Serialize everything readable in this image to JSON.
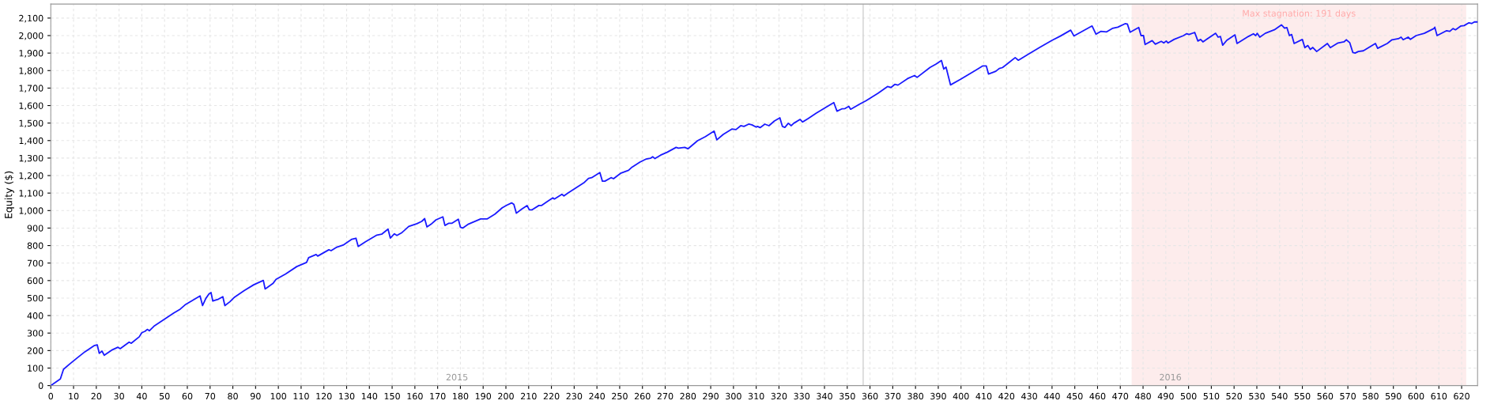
{
  "chart_data": {
    "type": "line",
    "ylabel": "Equity ($)",
    "xlim": [
      0,
      627
    ],
    "ylim": [
      0,
      2180
    ],
    "xticks": [
      0,
      10,
      20,
      30,
      40,
      50,
      60,
      70,
      80,
      90,
      100,
      110,
      120,
      130,
      140,
      150,
      160,
      170,
      180,
      190,
      200,
      210,
      220,
      230,
      240,
      250,
      260,
      270,
      280,
      290,
      300,
      310,
      320,
      330,
      340,
      350,
      360,
      370,
      380,
      390,
      400,
      410,
      420,
      430,
      440,
      450,
      460,
      470,
      480,
      490,
      500,
      510,
      520,
      530,
      540,
      550,
      560,
      570,
      580,
      590,
      600,
      610,
      620
    ],
    "yticks": [
      0,
      100,
      200,
      300,
      400,
      500,
      600,
      700,
      800,
      900,
      {
        "value": 1000,
        "label": "1,000"
      },
      {
        "value": 1100,
        "label": "1,100"
      },
      {
        "value": 1200,
        "label": "1,200"
      },
      {
        "value": 1300,
        "label": "1,300"
      },
      {
        "value": 1400,
        "label": "1,400"
      },
      {
        "value": 1500,
        "label": "1,500"
      },
      {
        "value": 1600,
        "label": "1,600"
      },
      {
        "value": 1700,
        "label": "1,700"
      },
      {
        "value": 1800,
        "label": "1,800"
      },
      {
        "value": 1900,
        "label": "1,900"
      },
      {
        "value": 2000,
        "label": "2,000"
      },
      {
        "value": 2100,
        "label": "2,100"
      }
    ],
    "grid": true,
    "marker": "none",
    "line_style": "solid",
    "series": [
      {
        "color": "#1a1aff",
        "x": [
          0,
          4.2,
          5.6,
          8.4,
          11.5,
          15,
          19,
          20.4,
          21.3,
          22.5,
          23.5,
          26.7,
          29.5,
          30.5,
          34.4,
          35.4,
          38.9,
          40,
          41.4,
          42.4,
          43.3,
          45.6,
          54.1,
          56.9,
          59,
          65.6,
          66.7,
          68.1,
          69.5,
          70.4,
          71.2,
          73.7,
          75.6,
          76.5,
          78.7,
          80.8,
          85,
          89.2,
          93.4,
          94.2,
          97.6,
          99,
          103.2,
          108.1,
          112.4,
          113.3,
          116.6,
          117.3,
          122.2,
          123.2,
          125.7,
          128.5,
          132.3,
          134.1,
          135.1,
          138.3,
          143.3,
          145.4,
          148.2,
          149.2,
          151,
          152.1,
          154.3,
          157.3,
          160.9,
          163,
          164.3,
          165.3,
          167.1,
          169.3,
          172.3,
          173.2,
          174.8,
          176.2,
          179.1,
          180,
          181,
          183.6,
          188.9,
          191.7,
          195.2,
          198.4,
          200.4,
          202.5,
          203.5,
          204.6,
          206.8,
          209.3,
          210.3,
          211.4,
          214.5,
          215.6,
          220.6,
          221.3,
          224.6,
          225.5,
          227.2,
          234.2,
          236.3,
          237.7,
          241.3,
          242.4,
          243.5,
          246.2,
          247.3,
          250.4,
          253.9,
          255.4,
          258.9,
          261.7,
          263.5,
          264.5,
          265.5,
          268,
          270.8,
          274.8,
          275.8,
          278.6,
          280,
          284.2,
          287.7,
          291.5,
          292.7,
          295.5,
          299.3,
          301.1,
          303.2,
          304.6,
          306.7,
          308.1,
          310,
          310.6,
          311.7,
          313.8,
          315.6,
          318,
          320.4,
          321.5,
          322.6,
          324.1,
          325.4,
          326.5,
          329.3,
          330.4,
          332.8,
          336.3,
          340.6,
          344.1,
          345.5,
          347.6,
          349,
          350.7,
          351.5,
          355.4,
          358.2,
          363.5,
          367.7,
          369.2,
          370.9,
          372.3,
          376.5,
          379.6,
          380.7,
          386.4,
          388.9,
          391.4,
          392.4,
          393.4,
          395.4,
          399.8,
          406.8,
          409.6,
          411.1,
          412.1,
          415.3,
          416.8,
          418.2,
          421,
          423.8,
          425.2,
          429.9,
          434.7,
          440,
          443.5,
          448.2,
          449.6,
          457.6,
          459.3,
          461.4,
          464,
          466.5,
          468.9,
          472.1,
          473.1,
          474.3,
          478.1,
          479.1,
          480.2,
          480.9,
          484,
          485.4,
          488,
          489.1,
          490.2,
          491,
          493.6,
          497.8,
          499.2,
          500.2,
          502.7,
          504.1,
          505.3,
          506.3,
          511.9,
          513,
          514,
          515,
          516.8,
          520.4,
          521.3,
          526.3,
          528.5,
          529.5,
          530.2,
          531.3,
          533.7,
          537.7,
          540.8,
          542.2,
          543.2,
          544.3,
          545.3,
          546.4,
          550,
          551.1,
          552.4,
          553.5,
          554.6,
          556.3,
          561,
          562.3,
          565.7,
          568.3,
          569.3,
          570.8,
          572.2,
          573.2,
          574.6,
          576.8,
          582.1,
          583.1,
          587.3,
          589.4,
          592.2,
          593.4,
          594.3,
          596.5,
          597.5,
          600,
          603.6,
          607.8,
          608.2,
          609.2,
          613.4,
          614.8,
          616.2,
          617.3,
          619.7,
          621.1,
          623.2,
          624.4,
          625.6,
          627
        ],
        "values": [
          0,
          38,
          93,
          124,
          157,
          193,
          228,
          233,
          184,
          197,
          173,
          202,
          219,
          211,
          248,
          242,
          279,
          302,
          310,
          321,
          313,
          342,
          415,
          437,
          461,
          512,
          457,
          497,
          524,
          532,
          483,
          494,
          508,
          457,
          479,
          506,
          543,
          576,
          601,
          552,
          583,
          607,
          638,
          680,
          704,
          731,
          749,
          740,
          776,
          771,
          791,
          803,
          836,
          842,
          795,
          822,
          860,
          865,
          894,
          843,
          867,
          858,
          874,
          909,
          925,
          938,
          954,
          907,
          922,
          947,
          964,
          915,
          927,
          927,
          951,
          905,
          900,
          923,
          952,
          952,
          980,
          1016,
          1031,
          1044,
          1035,
          985,
          1007,
          1029,
          1004,
          1004,
          1029,
          1029,
          1073,
          1066,
          1093,
          1084,
          1100,
          1158,
          1184,
          1188,
          1217,
          1168,
          1168,
          1188,
          1182,
          1213,
          1230,
          1248,
          1277,
          1295,
          1299,
          1308,
          1297,
          1317,
          1333,
          1361,
          1357,
          1361,
          1353,
          1399,
          1423,
          1454,
          1404,
          1435,
          1466,
          1463,
          1485,
          1481,
          1494,
          1490,
          1477,
          1481,
          1474,
          1494,
          1485,
          1512,
          1530,
          1481,
          1475,
          1499,
          1485,
          1499,
          1521,
          1506,
          1526,
          1556,
          1590,
          1617,
          1568,
          1581,
          1583,
          1596,
          1579,
          1608,
          1627,
          1670,
          1709,
          1703,
          1721,
          1717,
          1754,
          1772,
          1761,
          1818,
          1836,
          1858,
          1809,
          1820,
          1718,
          1750,
          1805,
          1827,
          1827,
          1780,
          1796,
          1812,
          1817,
          1845,
          1874,
          1859,
          1896,
          1933,
          1973,
          1996,
          2031,
          1998,
          2055,
          2008,
          2024,
          2021,
          2041,
          2048,
          2068,
          2066,
          2019,
          2046,
          2000,
          2000,
          1949,
          1971,
          1951,
          1967,
          1958,
          1969,
          1958,
          1978,
          2000,
          2011,
          2006,
          2018,
          1969,
          1978,
          1964,
          2013,
          1991,
          1995,
          1945,
          1973,
          2004,
          1955,
          1995,
          2010,
          2000,
          2013,
          1991,
          2013,
          2033,
          2061,
          2042,
          2046,
          2000,
          2006,
          1955,
          1978,
          1931,
          1943,
          1921,
          1932,
          1909,
          1955,
          1931,
          1958,
          1964,
          1976,
          1960,
          1903,
          1900,
          1909,
          1913,
          1955,
          1927,
          1955,
          1976,
          1982,
          1991,
          1976,
          1991,
          1978,
          2000,
          2013,
          2040,
          2048,
          2000,
          2028,
          2024,
          2040,
          2033,
          2055,
          2057,
          2073,
          2069,
          2078,
          2078
        ]
      }
    ],
    "bands": [
      {
        "axis": "x",
        "from": 475,
        "to": 622,
        "label": "Max stagnation: 191 days",
        "color": "#fdecec"
      }
    ],
    "ref_lines": [
      {
        "axis": "x",
        "value": 357,
        "color": "#d0d0d0"
      }
    ],
    "annotations": [
      "2015",
      "2016"
    ]
  }
}
